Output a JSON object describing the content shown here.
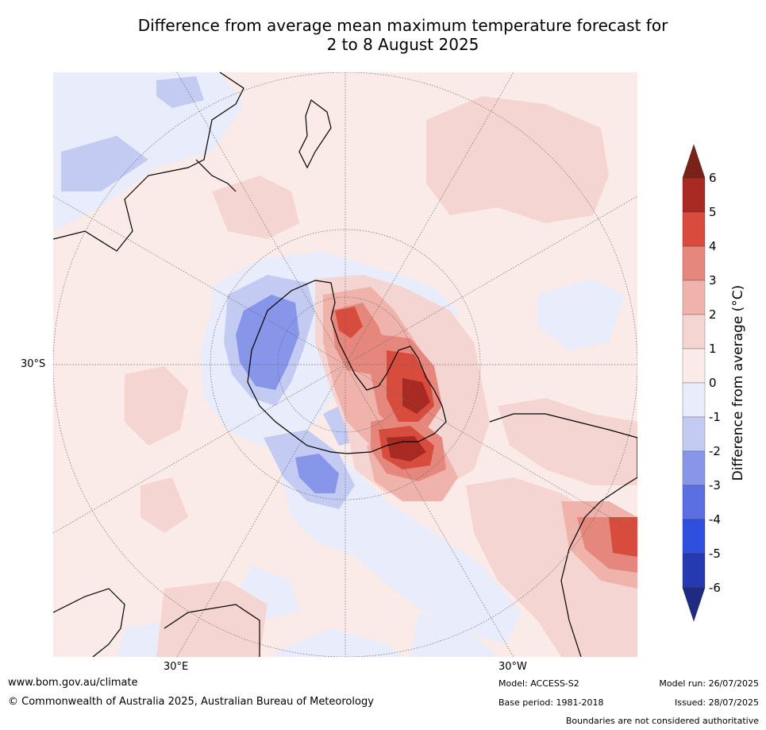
{
  "title": {
    "line1": "Difference from average mean maximum temperature forecast for",
    "line2": "2 to 8 August 2025"
  },
  "graticule_labels": {
    "lat": "30°S",
    "lon_east": "30°E",
    "lon_west": "30°W"
  },
  "colorbar": {
    "label": "Difference from average ($^\\circ$C)",
    "label_display": "Difference from average (°C)",
    "ticks": [
      "6",
      "5",
      "4",
      "3",
      "2",
      "1",
      "0",
      "-1",
      "-2",
      "-3",
      "-4",
      "-5",
      "-6"
    ],
    "colors": {
      "above_6": "#7a2119",
      "5_to_6": "#a82a22",
      "4_to_5": "#d84c3e",
      "3_to_4": "#e6877d",
      "2_to_3": "#efb3ac",
      "1_to_2": "#f5d5d2",
      "0_to_1": "#fbebe8",
      "m1_to_0": "#e8ecfb",
      "m2_to_m1": "#c3cbf3",
      "m3_to_m2": "#8896ea",
      "m4_to_m3": "#5b6fe2",
      "m5_to_m4": "#2f4fdf",
      "m6_to_m5": "#2539b0",
      "below_m6": "#1f2b82"
    }
  },
  "footer": {
    "url": "www.bom.gov.au/climate",
    "copyright": "© Commonwealth of Australia 2025, Australian Bureau of Meteorology",
    "model": "Model: ACCESS-S2",
    "base_period": "Base period: 1981-2018",
    "model_run": "Model run: 26/07/2025",
    "issued": "Issued: 28/07/2025",
    "disclaimer": "Boundaries are not considered authoritative"
  },
  "map": {
    "projection": "south-polar-stereographic",
    "colors": {
      "land_outline": "#000000",
      "graticule": "#666666"
    }
  }
}
